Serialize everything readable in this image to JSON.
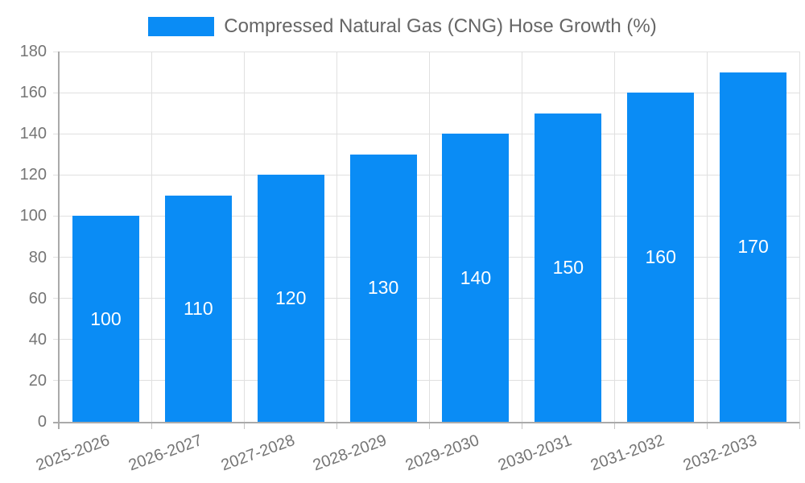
{
  "chart_data": {
    "type": "bar",
    "title": "Compressed Natural Gas (CNG) Hose Growth (%)",
    "xlabel": "",
    "ylabel": "",
    "categories": [
      "2025-2026",
      "2026-2027",
      "2027-2028",
      "2028-2029",
      "2029-2030",
      "2030-2031",
      "2031-2032",
      "2032-2033"
    ],
    "values": [
      100,
      110,
      120,
      130,
      140,
      150,
      160,
      170
    ],
    "bar_labels": [
      "100",
      "110",
      "120",
      "130",
      "140",
      "150",
      "160",
      "170"
    ],
    "ylim": [
      0,
      180
    ],
    "yticks": [
      0,
      20,
      40,
      60,
      80,
      100,
      120,
      140,
      160,
      180
    ],
    "grid": true,
    "legend_position": "top-center",
    "x_tick_rotation_deg": 20,
    "colors": {
      "bar": "#0A8CF5",
      "bar_label": "#FFFFFF",
      "grid": "#E0E0E0",
      "outer_tick": "#C4C4C4",
      "axis": "#AAAAAA",
      "tick_label": "#757575",
      "legend_text": "#666666",
      "background": "#FFFFFF"
    }
  }
}
